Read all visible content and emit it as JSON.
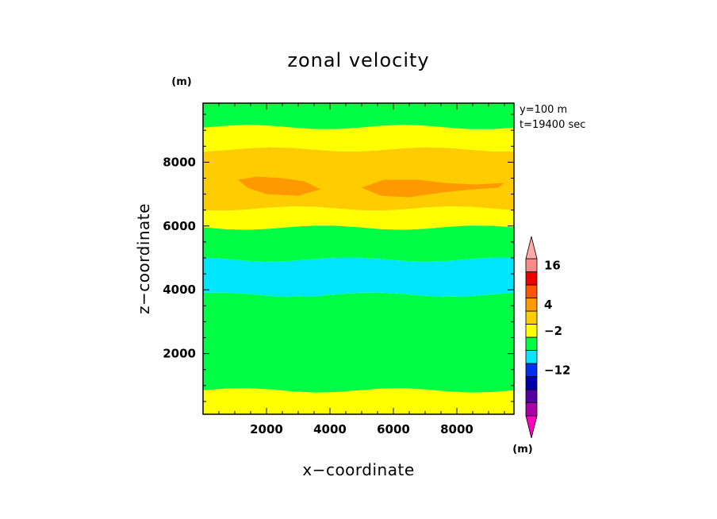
{
  "chart_data": {
    "type": "heatmap",
    "title": "zonal velocity",
    "xlabel": "x−coordinate",
    "ylabel": "z−coordinate",
    "x_unit": "(m)",
    "y_unit": "(m)",
    "annotations": [
      "y=100 m",
      "t=19400 sec"
    ],
    "xlim": [
      0,
      9800
    ],
    "ylim": [
      100,
      9850
    ],
    "x_ticks": [
      2000,
      4000,
      6000,
      8000
    ],
    "y_ticks": [
      2000,
      4000,
      6000,
      8000
    ],
    "bands": [
      {
        "zmin": 100,
        "zmax": 850,
        "level": 1
      },
      {
        "zmin": 850,
        "zmax": 3850,
        "level": 0
      },
      {
        "zmin": 3850,
        "zmax": 4950,
        "level": -1
      },
      {
        "zmin": 4950,
        "zmax": 5950,
        "level": 0
      },
      {
        "zmin": 5950,
        "zmax": 6550,
        "level": 1
      },
      {
        "zmin": 6550,
        "zmax": 8400,
        "level": 2
      },
      {
        "zmin": 8400,
        "zmax": 9100,
        "level": 1
      },
      {
        "zmin": 9100,
        "zmax": 9850,
        "level": 0
      }
    ],
    "patches": [
      {
        "level": 3,
        "outline": [
          [
            1100,
            7450
          ],
          [
            1700,
            7550
          ],
          [
            2500,
            7500
          ],
          [
            3200,
            7400
          ],
          [
            3700,
            7150
          ],
          [
            3000,
            6950
          ],
          [
            2000,
            7000
          ],
          [
            1400,
            7200
          ]
        ]
      },
      {
        "level": 3,
        "outline": [
          [
            5000,
            7200
          ],
          [
            5700,
            7450
          ],
          [
            6800,
            7450
          ],
          [
            7600,
            7350
          ],
          [
            8600,
            7300
          ],
          [
            9500,
            7350
          ],
          [
            9300,
            7200
          ],
          [
            8500,
            7150
          ],
          [
            7500,
            7050
          ],
          [
            6500,
            6900
          ],
          [
            5600,
            6950
          ]
        ]
      }
    ],
    "colorbar": {
      "unit": "(m)",
      "labels": [
        "16",
        "4",
        "−2",
        "−12"
      ],
      "colors": [
        "#ff00c0",
        "#aa00aa",
        "#5500a0",
        "#0000aa",
        "#0030ee",
        "#00e6ff",
        "#00ff44",
        "#ffff00",
        "#ffcc00",
        "#ff9900",
        "#ff5500",
        "#ee0000",
        "#ff8888",
        "#ffaaaa"
      ],
      "label_levels": [
        11.5,
        8.5,
        6.5,
        3.5
      ]
    }
  }
}
